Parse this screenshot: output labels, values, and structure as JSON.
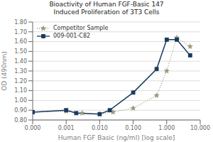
{
  "chart_data": {
    "type": "line",
    "title": "Bioactivity of Human FGF-Basic 147\nInduced Proliferation of 3T3 Cells",
    "x_label": "Human FGF Basic (ng/ml) [log scale]",
    "y_label": "OD (490nm)",
    "log": "x",
    "grid": "y",
    "legend": "upper left",
    "xlim": [
      0.0001,
      10.0
    ],
    "xticks": [
      {
        "value": 0.0001,
        "label": "0.000"
      },
      0.001,
      {
        "value": 0.01,
        "label": "0.010"
      },
      {
        "value": 0.1,
        "label": "0.100"
      },
      {
        "value": 1.0,
        "label": "1.000"
      },
      {
        "value": 10.0,
        "label": "10.000"
      }
    ],
    "ylim": [
      0.8,
      1.8
    ],
    "yticks": [
      {
        "value": 0.8,
        "label": "0.80"
      },
      {
        "value": 0.9,
        "label": "0.90"
      },
      {
        "value": 1.0,
        "label": "1.00"
      },
      {
        "value": 1.1,
        "label": "1.10"
      },
      {
        "value": 1.2,
        "label": "1.20"
      },
      {
        "value": 1.3,
        "label": "1.30"
      },
      {
        "value": 1.4,
        "label": "1.40"
      },
      {
        "value": 1.5,
        "label": "1.50"
      },
      {
        "value": 1.6,
        "label": "1.60"
      },
      {
        "value": 1.7,
        "label": "1.70"
      },
      {
        "value": 1.8,
        "label": "1.80"
      }
    ],
    "series": [
      {
        "name": "Competitor Sample",
        "color": "#9a9a7a",
        "marker": "star",
        "line_style": "dotted",
        "x": [
          0.0001,
          0.001,
          0.003,
          0.01,
          0.025,
          0.1,
          0.5,
          1.0,
          2.0,
          5.0
        ],
        "values": [
          0.88,
          0.89,
          0.87,
          0.86,
          0.88,
          0.92,
          1.05,
          1.3,
          1.64,
          1.55
        ]
      },
      {
        "name": "009-001-C82",
        "color": "#1a3a5c",
        "marker": "square",
        "line_style": "solid",
        "x": [
          0.0001,
          0.001,
          0.002,
          0.01,
          0.02,
          0.1,
          0.5,
          1.0,
          2.0,
          5.0
        ],
        "values": [
          0.88,
          0.9,
          0.87,
          0.86,
          0.9,
          1.08,
          1.32,
          1.62,
          1.62,
          1.46
        ]
      }
    ]
  }
}
